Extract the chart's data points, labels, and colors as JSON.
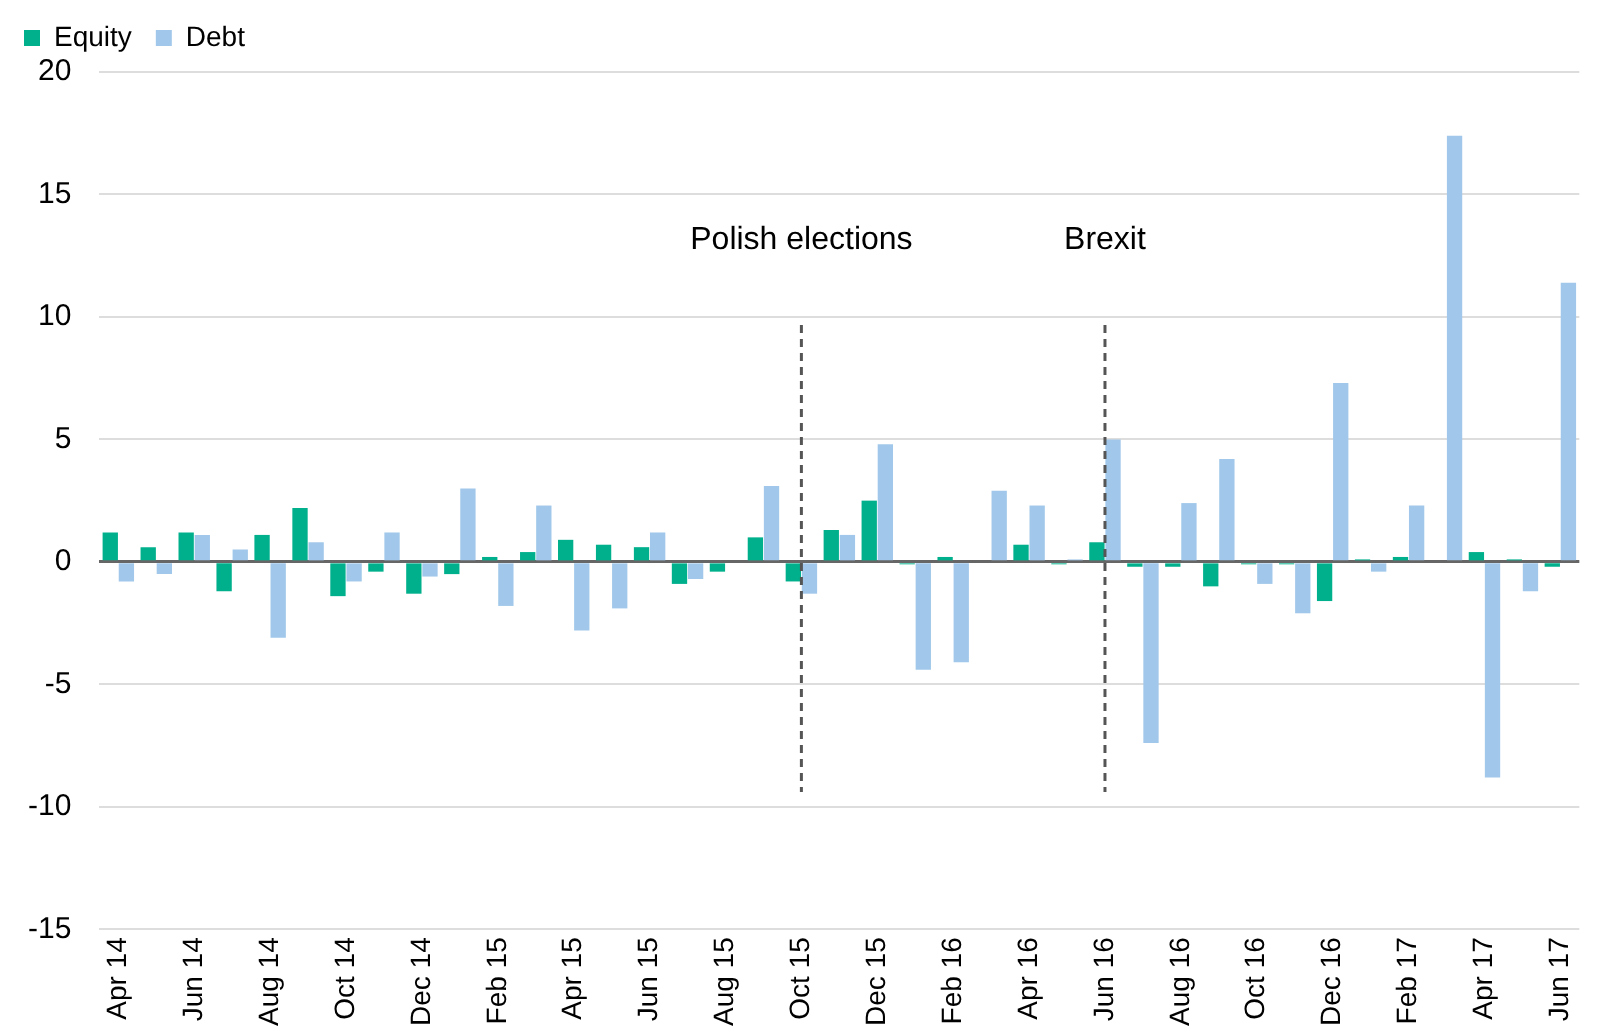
{
  "chart_data": {
    "type": "bar",
    "categories": [
      "Apr 14",
      null,
      "Jun 14",
      null,
      "Aug 14",
      null,
      "Oct 14",
      null,
      "Dec 14",
      null,
      "Feb 15",
      null,
      "Apr 15",
      null,
      "Jun 15",
      null,
      "Aug 15",
      null,
      "Oct 15",
      null,
      "Dec 15",
      null,
      "Feb 16",
      null,
      "Apr 16",
      null,
      "Jun 16",
      null,
      "Aug 16",
      null,
      "Oct 16",
      null,
      "Dec 16",
      null,
      "Feb 17",
      null,
      "Apr 17",
      null,
      "Jun 17"
    ],
    "series": [
      {
        "name": "Equity",
        "color": "#00b08c",
        "values": [
          1.2,
          0.6,
          1.2,
          -1.2,
          1.1,
          2.2,
          -1.4,
          -0.4,
          -1.3,
          -0.5,
          0.2,
          0.4,
          0.9,
          0.7,
          0.6,
          -0.9,
          -0.4,
          1.0,
          -0.8,
          1.3,
          2.5,
          -0.1,
          0.2,
          0,
          0.7,
          -0.1,
          0.8,
          -0.2,
          -0.2,
          -1.0,
          -0.1,
          -0.1,
          -1.6,
          0.1,
          0.2,
          0,
          0.4,
          0.1,
          -0.2
        ]
      },
      {
        "name": "Debt",
        "color": "#a1c8ea",
        "values": [
          -0.8,
          -0.5,
          1.1,
          0.5,
          -3.1,
          0.8,
          -0.8,
          1.2,
          -0.6,
          3.0,
          -1.8,
          2.3,
          -2.8,
          -1.9,
          1.2,
          -0.7,
          0,
          3.1,
          -1.3,
          1.1,
          4.8,
          -4.4,
          -4.1,
          2.9,
          2.3,
          0.1,
          5.0,
          -7.4,
          2.4,
          4.2,
          -0.9,
          -2.1,
          7.3,
          -0.4,
          2.3,
          17.4,
          -8.8,
          -1.2,
          11.4
        ]
      }
    ],
    "ylim": [
      -15,
      20
    ],
    "yticks": [
      -15,
      -10,
      -5,
      0,
      5,
      10,
      15,
      20
    ],
    "grid": "y",
    "legend": "top left",
    "ref_lines": [
      {
        "axis": "x",
        "value": "Oct 15",
        "label": "Polish elections",
        "line_style": "dashed",
        "color": "#555555"
      },
      {
        "axis": "x",
        "value": "Jun 16",
        "label": "Brexit",
        "line_style": "dashed",
        "color": "#555555"
      }
    ]
  }
}
